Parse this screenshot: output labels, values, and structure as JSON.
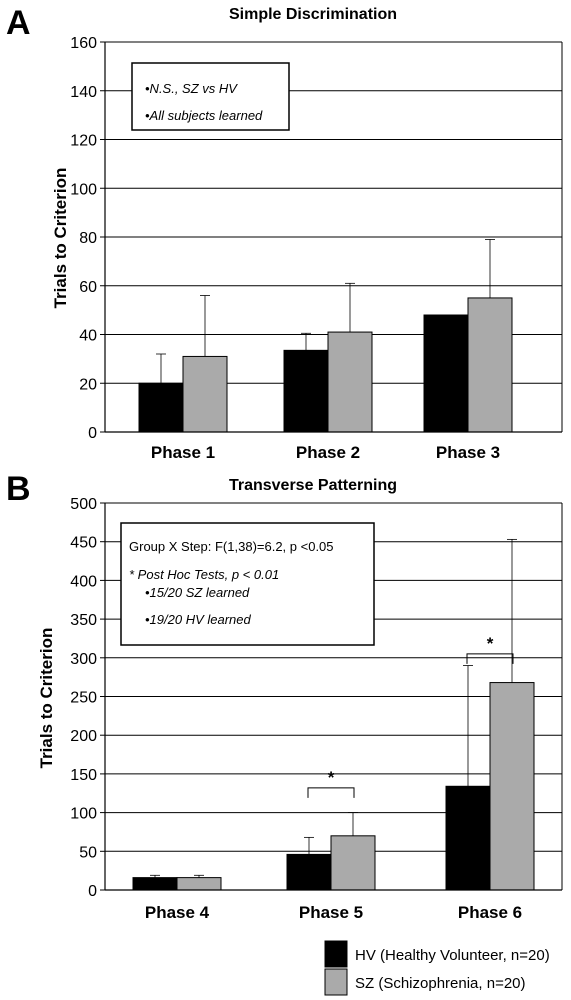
{
  "figure": {
    "colors": {
      "hv": "#000000",
      "sz": "#aaaaaa",
      "grid": "#000000",
      "box_border": "#000000"
    }
  },
  "chart_data": [
    {
      "panel_label": "A",
      "type": "bar",
      "title": "Simple  Discrimination",
      "xlabel": "",
      "ylabel": "Trials to Criterion",
      "ylim": [
        0,
        160
      ],
      "yticks": [
        0,
        20,
        40,
        60,
        80,
        100,
        120,
        140,
        160
      ],
      "grid": true,
      "categories": [
        "Phase 1",
        "Phase 2",
        "Phase 3"
      ],
      "series": [
        {
          "name": "HV",
          "values": [
            20,
            33.5,
            48
          ],
          "error_upper": [
            32,
            40.5,
            48
          ]
        },
        {
          "name": "SZ",
          "values": [
            31,
            41,
            55
          ],
          "error_upper": [
            56,
            61,
            79
          ]
        }
      ],
      "annotation_box": [
        "•N.S., SZ vs HV",
        "•All subjects learned"
      ],
      "significance": []
    },
    {
      "panel_label": "B",
      "type": "bar",
      "title": "Transverse Patterning",
      "xlabel": "",
      "ylabel": "Trials to Criterion",
      "ylim": [
        0,
        500
      ],
      "yticks": [
        0,
        50,
        100,
        150,
        200,
        250,
        300,
        350,
        400,
        450,
        500
      ],
      "grid": true,
      "categories": [
        "Phase 4",
        "Phase 5",
        "Phase 6"
      ],
      "series": [
        {
          "name": "HV",
          "values": [
            16,
            46,
            134
          ],
          "error_upper": [
            19,
            68,
            290
          ]
        },
        {
          "name": "SZ",
          "values": [
            16,
            70,
            268
          ],
          "error_upper": [
            19,
            100,
            453
          ]
        }
      ],
      "annotation_box": [
        "Group X Step: F(1,38)=6.2,  p <0.05",
        "* Post Hoc Tests, p < 0.01",
        "•15/20 SZ learned",
        "•19/20 HV learned"
      ],
      "significance": [
        {
          "category": "Phase 5",
          "label": "*",
          "bracket_at": 132
        },
        {
          "category": "Phase 6",
          "label": "*",
          "bracket_at": 305
        }
      ]
    }
  ],
  "legend": {
    "placement": "bottom-right",
    "items": [
      {
        "label": "HV (Healthy Volunteer, n=20)"
      },
      {
        "label": "SZ (Schizophrenia, n=20)"
      }
    ]
  }
}
